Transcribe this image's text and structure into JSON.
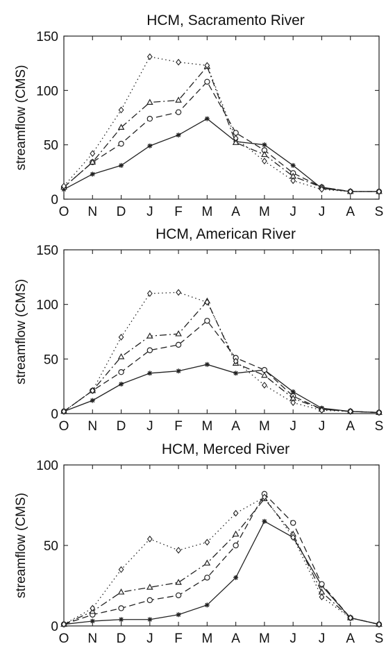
{
  "chart_data": [
    {
      "type": "line",
      "title": "HCM, Sacramento River",
      "ylabel": "streamflow (CMS)",
      "xlabel": "",
      "categories": [
        "O",
        "N",
        "D",
        "J",
        "F",
        "M",
        "A",
        "M",
        "J",
        "J",
        "A",
        "S"
      ],
      "ylim": [
        0,
        150
      ],
      "yticks": [
        0,
        50,
        100,
        150
      ],
      "series": [
        {
          "values": [
            9,
            23,
            31,
            49,
            59,
            74,
            53,
            50,
            31,
            10,
            7,
            7
          ],
          "marker": "star",
          "dash": "solid"
        },
        {
          "values": [
            11,
            34,
            51,
            74,
            80,
            108,
            61,
            45,
            24,
            11,
            7,
            7
          ],
          "marker": "circle",
          "dash": "dashed"
        },
        {
          "values": [
            11,
            34,
            66,
            89,
            91,
            122,
            52,
            41,
            21,
            11,
            7,
            7
          ],
          "marker": "triangle",
          "dash": "dashdot"
        },
        {
          "values": [
            12,
            42,
            82,
            131,
            126,
            123,
            56,
            35,
            17,
            9,
            7,
            7
          ],
          "marker": "diamond",
          "dash": "dotted"
        }
      ]
    },
    {
      "type": "line",
      "title": "HCM, American River",
      "ylabel": "streamflow (CMS)",
      "xlabel": "",
      "categories": [
        "O",
        "N",
        "D",
        "J",
        "F",
        "M",
        "A",
        "M",
        "J",
        "J",
        "A",
        "S"
      ],
      "ylim": [
        0,
        150
      ],
      "yticks": [
        0,
        50,
        100,
        150
      ],
      "series": [
        {
          "values": [
            2,
            12,
            27,
            37,
            39,
            45,
            37,
            40,
            20,
            5,
            2,
            1
          ],
          "marker": "star",
          "dash": "solid"
        },
        {
          "values": [
            2,
            21,
            38,
            58,
            63,
            85,
            51,
            40,
            16,
            4,
            2,
            1
          ],
          "marker": "circle",
          "dash": "dashed"
        },
        {
          "values": [
            2,
            21,
            52,
            71,
            73,
            103,
            46,
            35,
            14,
            4,
            2,
            1
          ],
          "marker": "triangle",
          "dash": "dashdot"
        },
        {
          "values": [
            2,
            21,
            70,
            110,
            111,
            102,
            48,
            26,
            10,
            3,
            2,
            1
          ],
          "marker": "diamond",
          "dash": "dotted"
        }
      ]
    },
    {
      "type": "line",
      "title": "HCM, Merced River",
      "ylabel": "streamflow (CMS)",
      "xlabel": "",
      "categories": [
        "O",
        "N",
        "D",
        "J",
        "F",
        "M",
        "A",
        "M",
        "J",
        "J",
        "A",
        "S"
      ],
      "ylim": [
        0,
        100
      ],
      "yticks": [
        0,
        50,
        100
      ],
      "series": [
        {
          "values": [
            1,
            3,
            4,
            4,
            7,
            13,
            30,
            65,
            55,
            25,
            5,
            1
          ],
          "marker": "star",
          "dash": "solid"
        },
        {
          "values": [
            1,
            7,
            11,
            16,
            19,
            30,
            50,
            82,
            64,
            26,
            5,
            1
          ],
          "marker": "circle",
          "dash": "dashed"
        },
        {
          "values": [
            1,
            9,
            21,
            24,
            27,
            39,
            57,
            79,
            57,
            21,
            5,
            1
          ],
          "marker": "triangle",
          "dash": "dashdot"
        },
        {
          "values": [
            1,
            11,
            35,
            54,
            47,
            52,
            70,
            80,
            55,
            18,
            5,
            1
          ],
          "marker": "diamond",
          "dash": "dotted"
        }
      ]
    }
  ]
}
